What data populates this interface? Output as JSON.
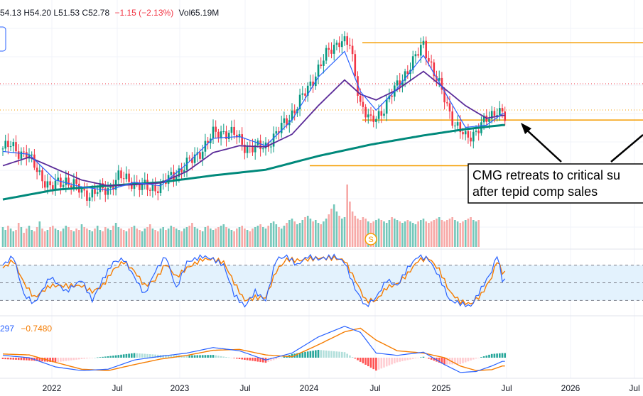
{
  "colors": {
    "up": "#089981",
    "down": "#f23645",
    "ema_fast": "#2962ff",
    "ema_mid": "#5b2c99",
    "sma_long": "#00897b",
    "support": "#f59d00",
    "stoch_k": "#2962ff",
    "stoch_d": "#f57c00",
    "stoch_band": "#e3f2fd",
    "macd": "#2962ff",
    "signal": "#f57c00"
  },
  "legend": {
    "ohlc_text": "54.13  H54.20  L51.53  C52.78",
    "change_text": "−1.15 (−2.13%)",
    "vol_text": "Vol65.19M",
    "macd_value_1": "297",
    "macd_value_2": "−0.7480"
  },
  "dividend_marker": "S",
  "annotation": {
    "line1": "CMG retreats to critical su",
    "line2": "after tepid comp sales"
  },
  "chart_data": {
    "type": "candlestick",
    "x_tick_labels": [
      "2022",
      "Jul",
      "2023",
      "Jul",
      "2024",
      "Jul",
      "2025",
      "Jul",
      "2026",
      "Jul"
    ],
    "support_levels": [
      66.0,
      52.5,
      44.5
    ],
    "price_path": [
      [
        0,
        47.5
      ],
      [
        3,
        48.0
      ],
      [
        6,
        47.0
      ],
      [
        9,
        46.5
      ],
      [
        12,
        44.5
      ],
      [
        15,
        42.5
      ],
      [
        18,
        40.5
      ],
      [
        21,
        41.5
      ],
      [
        24,
        42.0
      ],
      [
        27,
        41.0
      ],
      [
        30,
        40.0
      ],
      [
        33,
        39.5
      ],
      [
        36,
        40.0
      ],
      [
        40,
        40.5
      ],
      [
        44,
        42.5
      ],
      [
        48,
        42.0
      ],
      [
        52,
        41.0
      ],
      [
        56,
        40.5
      ],
      [
        60,
        41.0
      ],
      [
        64,
        42.5
      ],
      [
        68,
        44.0
      ],
      [
        72,
        45.5
      ],
      [
        76,
        47.5
      ],
      [
        80,
        50.0
      ],
      [
        84,
        50.5
      ],
      [
        88,
        50.0
      ],
      [
        92,
        48.0
      ],
      [
        96,
        47.5
      ],
      [
        100,
        48.0
      ],
      [
        104,
        50.0
      ],
      [
        108,
        52.5
      ],
      [
        112,
        55.0
      ],
      [
        116,
        58.0
      ],
      [
        120,
        61.5
      ],
      [
        124,
        64.5
      ],
      [
        128,
        66.5
      ],
      [
        132,
        65.5
      ],
      [
        136,
        55.5
      ],
      [
        140,
        52.0
      ],
      [
        144,
        54.0
      ],
      [
        148,
        57.0
      ],
      [
        152,
        60.0
      ],
      [
        156,
        62.5
      ],
      [
        160,
        66.0
      ],
      [
        164,
        60.5
      ],
      [
        168,
        56.5
      ],
      [
        172,
        51.5
      ],
      [
        176,
        49.5
      ],
      [
        180,
        50.5
      ],
      [
        184,
        52.5
      ],
      [
        188,
        54.5
      ],
      [
        190,
        53.5
      ],
      [
        191,
        52.78
      ]
    ],
    "ema_fast_path": [
      [
        0,
        47.0
      ],
      [
        10,
        46.5
      ],
      [
        20,
        42.0
      ],
      [
        30,
        40.8
      ],
      [
        40,
        40.2
      ],
      [
        50,
        41.6
      ],
      [
        60,
        41.0
      ],
      [
        70,
        44.8
      ],
      [
        80,
        49.3
      ],
      [
        90,
        49.6
      ],
      [
        100,
        48.0
      ],
      [
        110,
        52.5
      ],
      [
        120,
        60.0
      ],
      [
        130,
        64.5
      ],
      [
        136,
        57.5
      ],
      [
        142,
        54.2
      ],
      [
        150,
        58.0
      ],
      [
        160,
        63.8
      ],
      [
        168,
        57.5
      ],
      [
        176,
        51.2
      ],
      [
        184,
        51.6
      ],
      [
        190,
        53.6
      ]
    ],
    "ema_mid_path": [
      [
        0,
        44.5
      ],
      [
        10,
        46.0
      ],
      [
        20,
        44.0
      ],
      [
        30,
        42.0
      ],
      [
        40,
        41.0
      ],
      [
        50,
        41.2
      ],
      [
        60,
        41.5
      ],
      [
        70,
        43.5
      ],
      [
        80,
        46.8
      ],
      [
        90,
        48.0
      ],
      [
        100,
        47.8
      ],
      [
        110,
        50.0
      ],
      [
        120,
        55.0
      ],
      [
        130,
        59.5
      ],
      [
        136,
        57.0
      ],
      [
        142,
        56.0
      ],
      [
        150,
        57.8
      ],
      [
        160,
        61.0
      ],
      [
        168,
        58.0
      ],
      [
        176,
        55.0
      ],
      [
        184,
        52.8
      ],
      [
        190,
        53.3
      ]
    ],
    "sma_long_path": [
      [
        0,
        38.6
      ],
      [
        20,
        40.3
      ],
      [
        40,
        41.0
      ],
      [
        60,
        41.6
      ],
      [
        80,
        42.8
      ],
      [
        100,
        43.8
      ],
      [
        120,
        46.2
      ],
      [
        140,
        48.2
      ],
      [
        160,
        49.8
      ],
      [
        176,
        50.9
      ],
      [
        190,
        51.6
      ]
    ],
    "y_range": [
      36.5,
      71.0
    ],
    "volume_profile": [
      28,
      24,
      30,
      26,
      22,
      24,
      34,
      28,
      20,
      26,
      30,
      24,
      22,
      28,
      36,
      26,
      22,
      24,
      28,
      30,
      26,
      24,
      22,
      26,
      30,
      28,
      24,
      22,
      26,
      24,
      32,
      28,
      26,
      24,
      22,
      26,
      30,
      24,
      22,
      28,
      26,
      24,
      30,
      34,
      28,
      26,
      24,
      22,
      26,
      28,
      30,
      26,
      24,
      22,
      26,
      28,
      32,
      26,
      24,
      22,
      26,
      28,
      24,
      26,
      30,
      28,
      26,
      24,
      22,
      26,
      28,
      30,
      34,
      28,
      26,
      24,
      22,
      28,
      30,
      26,
      24,
      26,
      28,
      30,
      32,
      28,
      26,
      24,
      22,
      26,
      28,
      30,
      26,
      24,
      22,
      26,
      28,
      30,
      32,
      28,
      26,
      30,
      34,
      36,
      32,
      28,
      26,
      30,
      34,
      38,
      40,
      36,
      32,
      34,
      38,
      42,
      44,
      40,
      36,
      38,
      34,
      32,
      36,
      40,
      46,
      54,
      60,
      50,
      44,
      40,
      42,
      88,
      64,
      50,
      44,
      40,
      38,
      42,
      40,
      36,
      34,
      36,
      38,
      40,
      38,
      36,
      34,
      38,
      42,
      40,
      38,
      36,
      34,
      36,
      38,
      36,
      34,
      32,
      36,
      38,
      40,
      36,
      34,
      36,
      38,
      40,
      42,
      38,
      36,
      38,
      40,
      42,
      38,
      36,
      34,
      36,
      38,
      40,
      42,
      38,
      36,
      38
    ],
    "stochastic": {
      "upper": 80,
      "lower": 20,
      "k_path": [
        [
          0,
          80
        ],
        [
          4,
          95
        ],
        [
          8,
          30
        ],
        [
          12,
          15
        ],
        [
          18,
          60
        ],
        [
          24,
          35
        ],
        [
          30,
          55
        ],
        [
          34,
          20
        ],
        [
          38,
          55
        ],
        [
          42,
          85
        ],
        [
          46,
          90
        ],
        [
          50,
          60
        ],
        [
          54,
          30
        ],
        [
          58,
          70
        ],
        [
          62,
          95
        ],
        [
          66,
          40
        ],
        [
          70,
          85
        ],
        [
          76,
          95
        ],
        [
          80,
          90
        ],
        [
          84,
          80
        ],
        [
          88,
          30
        ],
        [
          92,
          10
        ],
        [
          96,
          35
        ],
        [
          100,
          20
        ],
        [
          104,
          90
        ],
        [
          108,
          95
        ],
        [
          112,
          80
        ],
        [
          116,
          95
        ],
        [
          120,
          90
        ],
        [
          126,
          95
        ],
        [
          130,
          85
        ],
        [
          134,
          40
        ],
        [
          138,
          10
        ],
        [
          142,
          25
        ],
        [
          146,
          55
        ],
        [
          150,
          45
        ],
        [
          154,
          75
        ],
        [
          158,
          95
        ],
        [
          162,
          90
        ],
        [
          166,
          60
        ],
        [
          170,
          20
        ],
        [
          174,
          15
        ],
        [
          178,
          10
        ],
        [
          182,
          40
        ],
        [
          186,
          70
        ],
        [
          188,
          98
        ],
        [
          190,
          55
        ]
      ],
      "d_path": [
        [
          0,
          75
        ],
        [
          4,
          88
        ],
        [
          8,
          50
        ],
        [
          12,
          25
        ],
        [
          18,
          45
        ],
        [
          24,
          45
        ],
        [
          30,
          45
        ],
        [
          34,
          35
        ],
        [
          38,
          45
        ],
        [
          42,
          72
        ],
        [
          46,
          86
        ],
        [
          50,
          70
        ],
        [
          54,
          45
        ],
        [
          58,
          55
        ],
        [
          62,
          82
        ],
        [
          66,
          60
        ],
        [
          70,
          75
        ],
        [
          76,
          90
        ],
        [
          80,
          90
        ],
        [
          84,
          85
        ],
        [
          88,
          50
        ],
        [
          92,
          20
        ],
        [
          96,
          25
        ],
        [
          100,
          25
        ],
        [
          104,
          70
        ],
        [
          108,
          90
        ],
        [
          112,
          88
        ],
        [
          116,
          90
        ],
        [
          120,
          92
        ],
        [
          126,
          92
        ],
        [
          130,
          88
        ],
        [
          134,
          55
        ],
        [
          138,
          20
        ],
        [
          142,
          20
        ],
        [
          146,
          42
        ],
        [
          150,
          48
        ],
        [
          154,
          65
        ],
        [
          158,
          88
        ],
        [
          162,
          92
        ],
        [
          166,
          72
        ],
        [
          170,
          35
        ],
        [
          174,
          18
        ],
        [
          178,
          14
        ],
        [
          182,
          30
        ],
        [
          186,
          60
        ],
        [
          188,
          88
        ],
        [
          190,
          68
        ]
      ]
    },
    "macd": {
      "macd_path": [
        [
          0,
          0.5
        ],
        [
          10,
          0.0
        ],
        [
          20,
          -2.0
        ],
        [
          30,
          -2.8
        ],
        [
          40,
          -2.5
        ],
        [
          50,
          -0.5
        ],
        [
          60,
          0.3
        ],
        [
          70,
          1.0
        ],
        [
          80,
          2.2
        ],
        [
          90,
          1.5
        ],
        [
          100,
          -0.5
        ],
        [
          110,
          1.0
        ],
        [
          120,
          4.5
        ],
        [
          130,
          6.8
        ],
        [
          136,
          5.5
        ],
        [
          142,
          1.0
        ],
        [
          150,
          0.5
        ],
        [
          160,
          1.2
        ],
        [
          168,
          -1.5
        ],
        [
          174,
          -3.2
        ],
        [
          180,
          -3.0
        ],
        [
          186,
          -1.8
        ],
        [
          190,
          -0.8
        ]
      ],
      "signal_path": [
        [
          0,
          0.8
        ],
        [
          10,
          0.6
        ],
        [
          20,
          -1.0
        ],
        [
          30,
          -2.5
        ],
        [
          40,
          -2.8
        ],
        [
          50,
          -1.5
        ],
        [
          60,
          -0.3
        ],
        [
          70,
          0.5
        ],
        [
          80,
          1.6
        ],
        [
          90,
          1.8
        ],
        [
          100,
          0.6
        ],
        [
          110,
          0.2
        ],
        [
          120,
          2.8
        ],
        [
          130,
          5.6
        ],
        [
          136,
          6.4
        ],
        [
          142,
          3.8
        ],
        [
          150,
          1.5
        ],
        [
          160,
          1.0
        ],
        [
          168,
          0.0
        ],
        [
          174,
          -1.8
        ],
        [
          180,
          -2.8
        ],
        [
          186,
          -2.6
        ],
        [
          190,
          -1.8
        ]
      ],
      "y_range": [
        -4.0,
        8.0
      ]
    }
  }
}
